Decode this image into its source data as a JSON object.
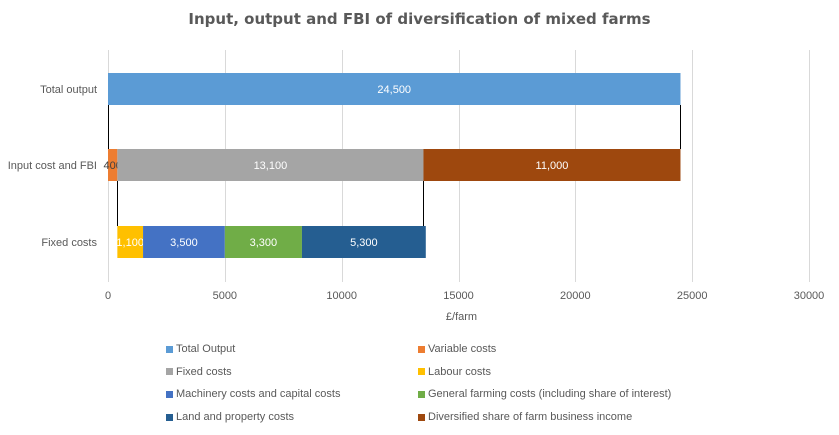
{
  "chart_data": {
    "type": "bar",
    "orientation": "horizontal",
    "stacked": true,
    "title": "Input, output and FBI of diversification of mixed farms",
    "xlabel": "£/farm",
    "ylabel": "",
    "xlim": [
      0,
      30000
    ],
    "x_ticks": [
      0,
      5000,
      10000,
      15000,
      20000,
      25000,
      30000
    ],
    "x_tick_labels": [
      "0",
      "5000",
      "10000",
      "15000",
      "20000",
      "25000",
      "30000"
    ],
    "categories": [
      "Total output",
      "Input cost and FBI",
      "Fixed costs"
    ],
    "grid": true,
    "legend_position": "bottom",
    "series": [
      {
        "name": "Total Output",
        "color": "#5b9bd5",
        "values": [
          24500,
          null,
          null
        ],
        "labels": [
          "24,500",
          "",
          ""
        ]
      },
      {
        "name": "Variable costs",
        "color": "#ed7d31",
        "values": [
          null,
          400,
          null
        ],
        "labels": [
          "",
          "400",
          ""
        ]
      },
      {
        "name": "Fixed costs",
        "color": "#a5a5a5",
        "values": [
          null,
          13100,
          null
        ],
        "labels": [
          "",
          "13,100",
          ""
        ]
      },
      {
        "name": "Labour costs",
        "color": "#ffc000",
        "values": [
          null,
          null,
          1100
        ],
        "labels": [
          "",
          "",
          "1,100"
        ]
      },
      {
        "name": "Machinery costs and capital costs",
        "color": "#4472c4",
        "values": [
          null,
          null,
          3500
        ],
        "labels": [
          "",
          "",
          "3,500"
        ]
      },
      {
        "name": "General farming costs (including share of interest)",
        "color": "#70ad47",
        "values": [
          null,
          null,
          3300
        ],
        "labels": [
          "",
          "",
          "3,300"
        ]
      },
      {
        "name": "Land and property costs",
        "color": "#255e91",
        "values": [
          null,
          null,
          5300
        ],
        "labels": [
          "",
          "",
          "5,300"
        ]
      },
      {
        "name": "Diversified share of farm business income",
        "color": "#9e480e",
        "values": [
          null,
          11000,
          null
        ],
        "labels": [
          "",
          "11,000",
          ""
        ]
      }
    ],
    "category_offsets": [
      0,
      0,
      400
    ]
  }
}
